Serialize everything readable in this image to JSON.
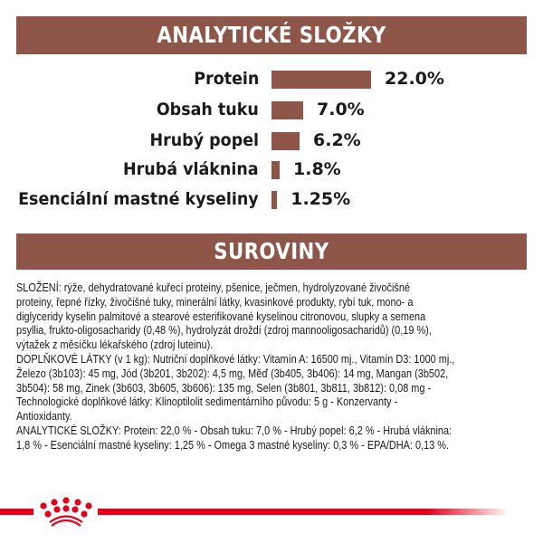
{
  "header": {
    "title": "ANALYTICKÉ SLOŽKY"
  },
  "chart_data": {
    "type": "bar",
    "orientation": "horizontal",
    "title": "ANALYTICKÉ SLOŽKY",
    "categories": [
      "Protein",
      "Obsah tuku",
      "Hrubý popel",
      "Hrubá vláknina",
      "Esenciální mastné kyseliny"
    ],
    "values": [
      22.0,
      7.0,
      6.2,
      1.8,
      1.25
    ],
    "value_labels": [
      "22.0%",
      "7.0%",
      "6.2%",
      "1.8%",
      "1.25%"
    ],
    "unit": "%",
    "bar_color": "#8E5649",
    "grid": false
  },
  "section2": {
    "title": "SUROVINY"
  },
  "ingredients_lines": [
    "SLOŽENÍ: rýže, dehydratované kuřecí proteiny, pšenice, ječmen, hydrolyzované živočišné",
    "proteiny, řepné řízky, živočišné tuky, minerální látky, kvasinkové produkty, rybí tuk, mono- a",
    "diglyceridy kyselin palmitové a stearové esterifikované kyselinou citronovou, slupky a semena",
    "psyllia, frukto-oligosacharidy (0,48 %), hydrolyzát droždí (zdroj mannooligosacharidů) (0,19 %),",
    "výtažek z měsíčku lékařského (zdroj luteinu).",
    "DOPLŇKOVÉ LÁTKY (v 1 kg): Nutriční doplňkové látky: Vitamín A: 16500 mj., Vitamín D3: 1000 mj.,",
    "Železo (3b103): 45 mg, Jód (3b201, 3b202): 4,5 mg, Měď (3b405, 3b406): 14 mg, Mangan (3b502,",
    "3b504): 58 mg, Zinek (3b603, 3b605, 3b606): 135 mg, Selen (3b801, 3b811, 3b812): 0,08 mg -",
    "Technologické doplňkové látky: Klinoptilolit sedimentárního původu: 5 g - Konzervanty -",
    "Antioxidanty.",
    "ANALYTICKÉ SLOŽKY: Protein: 22,0 % - Obsah tuku: 7,0 % - Hrubý popel: 6,2 % - Hrubá vláknina:",
    "1,8 % - Esenciální mastné kyseliny: 1,25 % - Omega 3 mastné kyseliny: 0,3 % - EPA/DHA: 0,13 %."
  ],
  "footer": {
    "logo_icon": "royal-canin-crown-icon",
    "brand_color": "#E2001A"
  }
}
